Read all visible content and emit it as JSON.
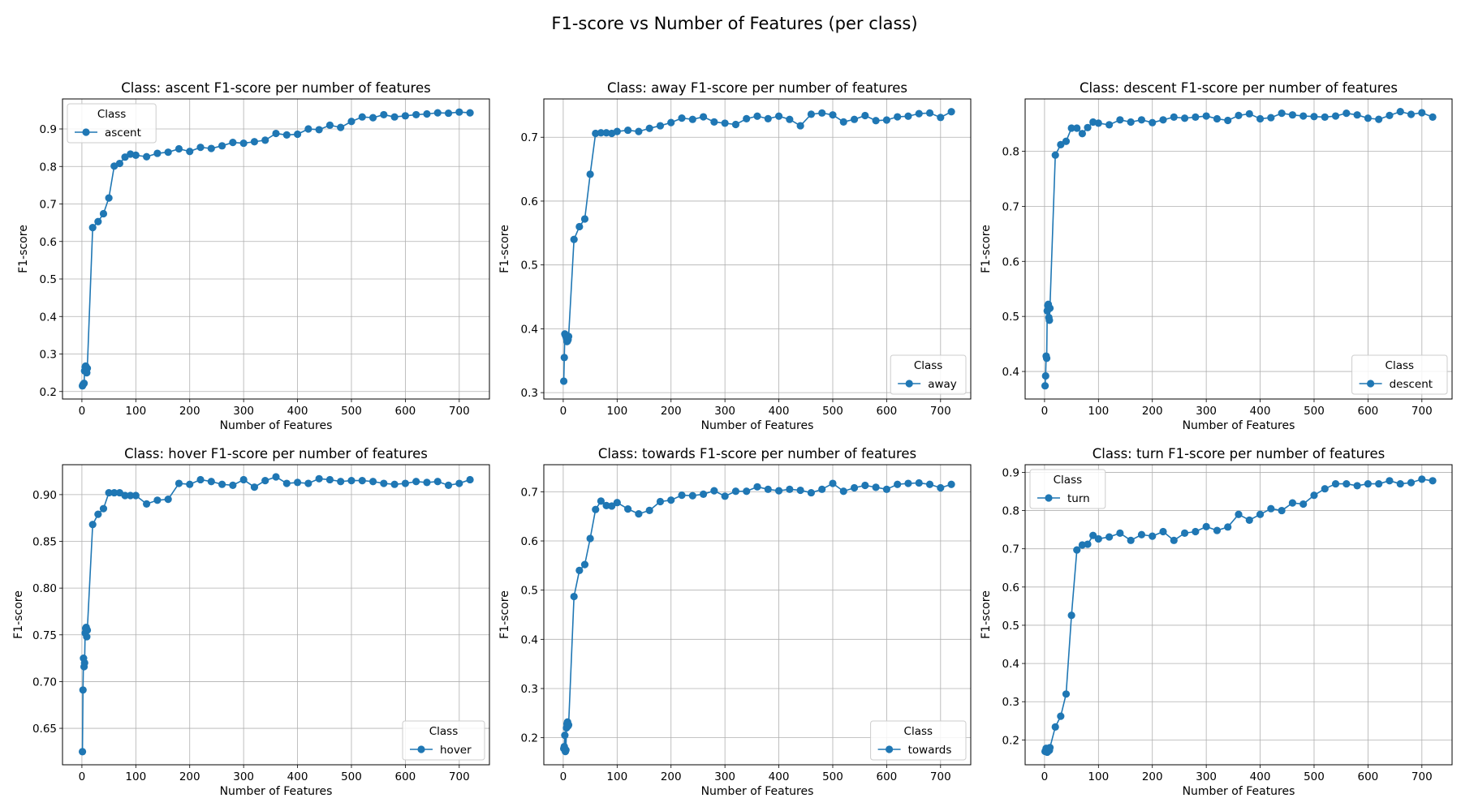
{
  "figure": {
    "title": "F1-score vs Number of Features (per class)",
    "line_color": "#1f77b4"
  },
  "chart_data": [
    {
      "type": "line",
      "title": "Class: ascent F1-score per number of features",
      "xlabel": "Number of Features",
      "ylabel": "F1-score",
      "xlim": [
        -36,
        756
      ],
      "ylim": [
        0.18,
        0.98
      ],
      "xticks": [
        0,
        100,
        200,
        300,
        400,
        500,
        600,
        700
      ],
      "yticks": [
        0.2,
        0.3,
        0.4,
        0.5,
        0.6,
        0.7,
        0.8,
        0.9
      ],
      "tick_decimals": 1,
      "grid": true,
      "legend": {
        "title": "Class",
        "placement": "upper-left"
      },
      "series": [
        {
          "name": "ascent",
          "x": [
            1,
            2,
            3,
            4,
            5,
            6,
            7,
            8,
            9,
            10,
            20,
            30,
            40,
            50,
            60,
            70,
            80,
            90,
            100,
            120,
            140,
            160,
            180,
            200,
            220,
            240,
            260,
            280,
            300,
            320,
            340,
            360,
            380,
            400,
            420,
            440,
            460,
            480,
            500,
            520,
            540,
            560,
            580,
            600,
            620,
            640,
            660,
            680,
            700,
            720
          ],
          "y": [
            0.215,
            0.218,
            0.22,
            0.222,
            0.255,
            0.265,
            0.268,
            0.26,
            0.25,
            0.262,
            0.637,
            0.653,
            0.674,
            0.716,
            0.801,
            0.808,
            0.825,
            0.833,
            0.83,
            0.826,
            0.835,
            0.838,
            0.847,
            0.84,
            0.851,
            0.848,
            0.855,
            0.864,
            0.862,
            0.866,
            0.87,
            0.888,
            0.884,
            0.886,
            0.9,
            0.898,
            0.91,
            0.904,
            0.92,
            0.932,
            0.93,
            0.938,
            0.932,
            0.935,
            0.938,
            0.94,
            0.943,
            0.942,
            0.945,
            0.943
          ]
        }
      ]
    },
    {
      "type": "line",
      "title": "Class: away F1-score per number of features",
      "xlabel": "Number of Features",
      "ylabel": "F1-score",
      "xlim": [
        -36,
        756
      ],
      "ylim": [
        0.29,
        0.76
      ],
      "xticks": [
        0,
        100,
        200,
        300,
        400,
        500,
        600,
        700
      ],
      "yticks": [
        0.3,
        0.4,
        0.5,
        0.6,
        0.7
      ],
      "tick_decimals": 1,
      "grid": true,
      "legend": {
        "title": "Class",
        "placement": "lower-right"
      },
      "series": [
        {
          "name": "away",
          "x": [
            1,
            2,
            3,
            4,
            5,
            6,
            7,
            8,
            9,
            10,
            20,
            30,
            40,
            50,
            60,
            70,
            80,
            90,
            100,
            120,
            140,
            160,
            180,
            200,
            220,
            240,
            260,
            280,
            300,
            320,
            340,
            360,
            380,
            400,
            420,
            440,
            460,
            480,
            500,
            520,
            540,
            560,
            580,
            600,
            620,
            640,
            660,
            680,
            700,
            720
          ],
          "y": [
            0.318,
            0.355,
            0.392,
            0.39,
            0.388,
            0.385,
            0.38,
            0.381,
            0.383,
            0.388,
            0.54,
            0.56,
            0.572,
            0.642,
            0.706,
            0.707,
            0.707,
            0.706,
            0.709,
            0.711,
            0.709,
            0.714,
            0.718,
            0.723,
            0.73,
            0.728,
            0.732,
            0.724,
            0.722,
            0.72,
            0.729,
            0.733,
            0.729,
            0.733,
            0.728,
            0.718,
            0.736,
            0.738,
            0.735,
            0.724,
            0.728,
            0.734,
            0.726,
            0.727,
            0.732,
            0.733,
            0.737,
            0.738,
            0.731,
            0.74
          ]
        }
      ]
    },
    {
      "type": "line",
      "title": "Class: descent F1-score per number of features",
      "xlabel": "Number of Features",
      "ylabel": "F1-score",
      "xlim": [
        -36,
        756
      ],
      "ylim": [
        0.35,
        0.895
      ],
      "xticks": [
        0,
        100,
        200,
        300,
        400,
        500,
        600,
        700
      ],
      "yticks": [
        0.4,
        0.5,
        0.6,
        0.7,
        0.8
      ],
      "tick_decimals": 1,
      "grid": true,
      "legend": {
        "title": "Class",
        "placement": "lower-right"
      },
      "series": [
        {
          "name": "descent",
          "x": [
            1,
            2,
            3,
            4,
            5,
            6,
            7,
            8,
            9,
            10,
            20,
            30,
            40,
            50,
            60,
            70,
            80,
            90,
            100,
            120,
            140,
            160,
            180,
            200,
            220,
            240,
            260,
            280,
            300,
            320,
            340,
            360,
            380,
            400,
            420,
            440,
            460,
            480,
            500,
            520,
            540,
            560,
            580,
            600,
            620,
            640,
            660,
            680,
            700,
            720
          ],
          "y": [
            0.374,
            0.392,
            0.428,
            0.424,
            0.51,
            0.52,
            0.522,
            0.498,
            0.493,
            0.515,
            0.793,
            0.812,
            0.818,
            0.842,
            0.842,
            0.832,
            0.843,
            0.853,
            0.851,
            0.848,
            0.857,
            0.853,
            0.857,
            0.852,
            0.857,
            0.862,
            0.86,
            0.862,
            0.864,
            0.859,
            0.856,
            0.865,
            0.868,
            0.859,
            0.861,
            0.869,
            0.866,
            0.864,
            0.863,
            0.862,
            0.864,
            0.869,
            0.866,
            0.86,
            0.858,
            0.865,
            0.872,
            0.867,
            0.87,
            0.862
          ]
        }
      ]
    },
    {
      "type": "line",
      "title": "Class: hover F1-score per number of features",
      "xlabel": "Number of Features",
      "ylabel": "F1-score",
      "xlim": [
        -36,
        756
      ],
      "ylim": [
        0.611,
        0.932
      ],
      "xticks": [
        0,
        100,
        200,
        300,
        400,
        500,
        600,
        700
      ],
      "yticks": [
        0.65,
        0.7,
        0.75,
        0.8,
        0.85,
        0.9
      ],
      "tick_decimals": 2,
      "grid": true,
      "legend": {
        "title": "Class",
        "placement": "lower-right"
      },
      "series": [
        {
          "name": "hover",
          "x": [
            1,
            2,
            3,
            4,
            5,
            6,
            7,
            8,
            9,
            10,
            20,
            30,
            40,
            50,
            60,
            70,
            80,
            90,
            100,
            120,
            140,
            160,
            180,
            200,
            220,
            240,
            260,
            280,
            300,
            320,
            340,
            360,
            380,
            400,
            420,
            440,
            460,
            480,
            500,
            520,
            540,
            560,
            580,
            600,
            620,
            640,
            660,
            680,
            700,
            720
          ],
          "y": [
            0.625,
            0.691,
            0.725,
            0.716,
            0.72,
            0.752,
            0.757,
            0.758,
            0.748,
            0.755,
            0.868,
            0.879,
            0.885,
            0.902,
            0.902,
            0.902,
            0.899,
            0.899,
            0.899,
            0.89,
            0.894,
            0.895,
            0.912,
            0.911,
            0.916,
            0.914,
            0.911,
            0.91,
            0.916,
            0.908,
            0.915,
            0.919,
            0.912,
            0.913,
            0.912,
            0.917,
            0.916,
            0.914,
            0.915,
            0.915,
            0.914,
            0.912,
            0.911,
            0.912,
            0.914,
            0.913,
            0.914,
            0.91,
            0.912,
            0.916
          ]
        }
      ]
    },
    {
      "type": "line",
      "title": "Class: towards F1-score per number of features",
      "xlabel": "Number of Features",
      "ylabel": "F1-score",
      "xlim": [
        -36,
        756
      ],
      "ylim": [
        0.145,
        0.755
      ],
      "xticks": [
        0,
        100,
        200,
        300,
        400,
        500,
        600,
        700
      ],
      "yticks": [
        0.2,
        0.3,
        0.4,
        0.5,
        0.6,
        0.7
      ],
      "tick_decimals": 1,
      "grid": true,
      "legend": {
        "title": "Class",
        "placement": "lower-right"
      },
      "series": [
        {
          "name": "towards",
          "x": [
            1,
            2,
            3,
            4,
            5,
            6,
            7,
            8,
            9,
            10,
            20,
            30,
            40,
            50,
            60,
            70,
            80,
            90,
            100,
            120,
            140,
            160,
            180,
            200,
            220,
            240,
            260,
            280,
            300,
            320,
            340,
            360,
            380,
            400,
            420,
            440,
            460,
            480,
            500,
            520,
            540,
            560,
            580,
            600,
            620,
            640,
            660,
            680,
            700,
            720
          ],
          "y": [
            0.178,
            0.182,
            0.205,
            0.172,
            0.175,
            0.22,
            0.228,
            0.232,
            0.224,
            0.226,
            0.487,
            0.54,
            0.552,
            0.605,
            0.664,
            0.681,
            0.672,
            0.671,
            0.678,
            0.665,
            0.655,
            0.662,
            0.68,
            0.683,
            0.693,
            0.692,
            0.695,
            0.702,
            0.691,
            0.701,
            0.701,
            0.71,
            0.705,
            0.702,
            0.705,
            0.703,
            0.698,
            0.705,
            0.717,
            0.701,
            0.708,
            0.713,
            0.709,
            0.705,
            0.715,
            0.717,
            0.718,
            0.715,
            0.708,
            0.715
          ]
        }
      ]
    },
    {
      "type": "line",
      "title": "Class: turn F1-score per number of features",
      "xlabel": "Number of Features",
      "ylabel": "F1-score",
      "xlim": [
        -36,
        756
      ],
      "ylim": [
        0.135,
        0.92
      ],
      "xticks": [
        0,
        100,
        200,
        300,
        400,
        500,
        600,
        700
      ],
      "yticks": [
        0.2,
        0.3,
        0.4,
        0.5,
        0.6,
        0.7,
        0.8,
        0.9
      ],
      "tick_decimals": 1,
      "grid": true,
      "legend": {
        "title": "Class",
        "placement": "upper-left"
      },
      "series": [
        {
          "name": "turn",
          "x": [
            1,
            2,
            3,
            4,
            5,
            6,
            7,
            8,
            9,
            10,
            20,
            30,
            40,
            50,
            60,
            70,
            80,
            90,
            100,
            120,
            140,
            160,
            180,
            200,
            220,
            240,
            260,
            280,
            300,
            320,
            340,
            360,
            380,
            400,
            420,
            440,
            460,
            480,
            500,
            520,
            540,
            560,
            580,
            600,
            620,
            640,
            660,
            680,
            700,
            720
          ],
          "y": [
            0.17,
            0.172,
            0.178,
            0.17,
            0.168,
            0.172,
            0.175,
            0.172,
            0.173,
            0.18,
            0.234,
            0.262,
            0.32,
            0.526,
            0.697,
            0.71,
            0.712,
            0.735,
            0.726,
            0.731,
            0.741,
            0.722,
            0.737,
            0.733,
            0.745,
            0.722,
            0.741,
            0.745,
            0.758,
            0.748,
            0.757,
            0.79,
            0.775,
            0.79,
            0.805,
            0.8,
            0.82,
            0.817,
            0.84,
            0.857,
            0.87,
            0.87,
            0.865,
            0.87,
            0.87,
            0.878,
            0.87,
            0.873,
            0.882,
            0.878
          ]
        }
      ]
    }
  ]
}
